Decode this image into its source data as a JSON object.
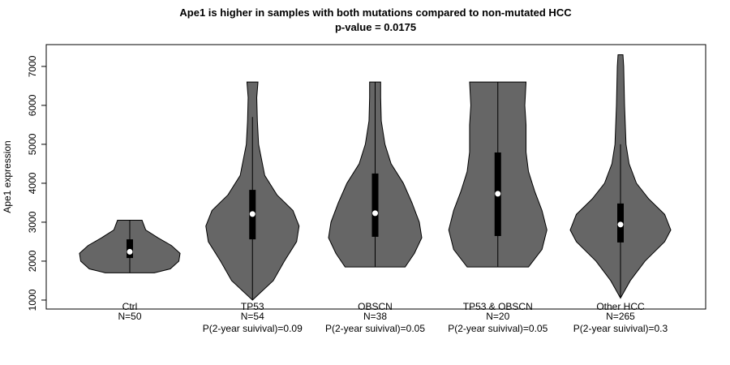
{
  "chart_data": {
    "type": "violin",
    "title": "Ape1 is higher in samples with both mutations compared to non-mutated HCC",
    "subtitle": "p-value = 0.0175",
    "y_label": "Ape1 expression",
    "ylim": [
      770,
      7560
    ],
    "yticks": [
      1000,
      2000,
      3000,
      4000,
      5000,
      6000,
      7000
    ],
    "color": "#666666",
    "groups": [
      {
        "name": "Ctrl",
        "n_label": "N=50",
        "min": 1700,
        "q1": 2080,
        "median": 2240,
        "q3": 2560,
        "max": 3050,
        "density": {
          "y": [
            1700,
            1800,
            2000,
            2200,
            2400,
            2600,
            2800,
            3050
          ],
          "width": [
            0.2,
            0.33,
            0.4,
            0.41,
            0.34,
            0.23,
            0.13,
            0.1
          ]
        }
      },
      {
        "name": "TP53",
        "n_label": "N=54",
        "survival_label": "P(2-year suivival)=0.09",
        "min": 1000,
        "q1": 2560,
        "median": 3210,
        "q3": 3830,
        "max": 5700,
        "density": {
          "y": [
            1000,
            1500,
            2000,
            2500,
            2900,
            3300,
            3700,
            4200,
            5000,
            5600,
            6200,
            6600
          ],
          "width": [
            0,
            0.17,
            0.26,
            0.36,
            0.38,
            0.33,
            0.2,
            0.1,
            0.05,
            0.04,
            0.035,
            0.045
          ]
        }
      },
      {
        "name": "OBSCN",
        "n_label": "N=38",
        "survival_label": "P(2-year suivival)=0.05",
        "min": 1850,
        "q1": 2625,
        "median": 3230,
        "q3": 4250,
        "max": 6600,
        "density": {
          "y": [
            1850,
            2200,
            2600,
            3000,
            3500,
            4000,
            4500,
            5000,
            5600,
            6200,
            6600
          ],
          "width": [
            0.245,
            0.32,
            0.38,
            0.36,
            0.3,
            0.23,
            0.13,
            0.08,
            0.05,
            0.045,
            0.045
          ]
        }
      },
      {
        "name": "TP53 & OBSCN",
        "n_label": "N=20",
        "survival_label": "P(2-year suivival)=0.05",
        "min": 1850,
        "q1": 2645,
        "median": 3730,
        "q3": 4790,
        "max": 6600,
        "density": {
          "y": [
            1850,
            2300,
            2800,
            3300,
            3800,
            4300,
            4800,
            5500,
            6000,
            6600
          ],
          "width": [
            0.25,
            0.36,
            0.4,
            0.36,
            0.3,
            0.25,
            0.23,
            0.23,
            0.22,
            0.23
          ]
        }
      },
      {
        "name": "Other HCC",
        "n_label": "N=265",
        "survival_label": "P(2-year suivival)=0.3",
        "min": 1050,
        "q1": 2480,
        "median": 2940,
        "q3": 3480,
        "max": 5000,
        "density": {
          "y": [
            1050,
            1500,
            2000,
            2500,
            2800,
            3200,
            3600,
            4000,
            4500,
            5000,
            6000,
            7000,
            7300
          ],
          "width": [
            0,
            0.08,
            0.2,
            0.36,
            0.41,
            0.36,
            0.23,
            0.13,
            0.07,
            0.045,
            0.033,
            0.026,
            0.02
          ]
        }
      }
    ]
  }
}
